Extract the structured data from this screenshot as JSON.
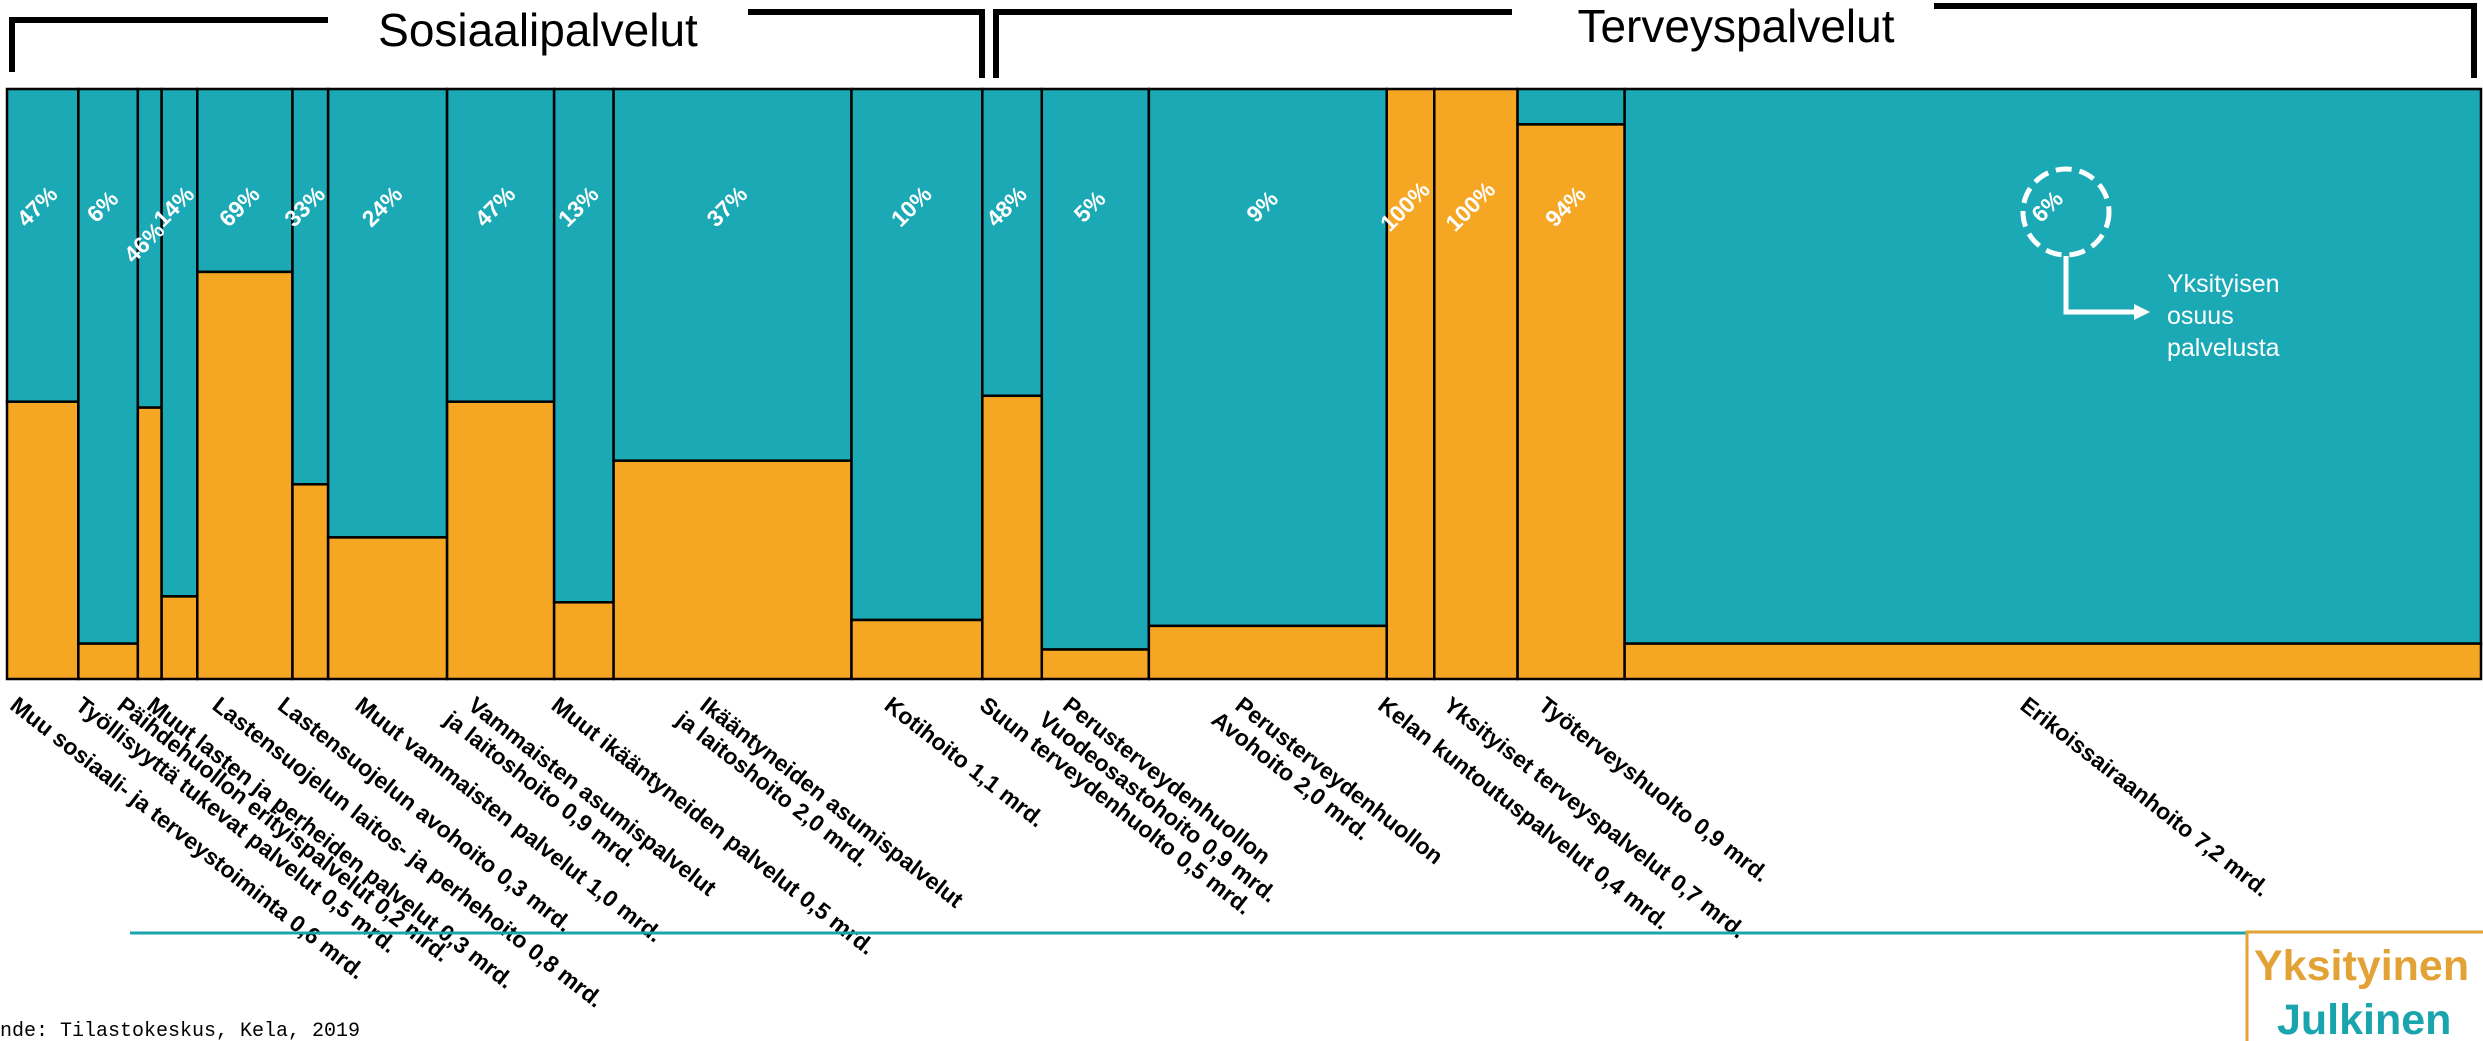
{
  "colors": {
    "private": "#f5a623",
    "public": "#1aa9b5",
    "border": "#000000",
    "label": "#ffffff",
    "legend_private": "#e2a236",
    "legend_public": "#1aa4ae"
  },
  "groups": {
    "social": "Sosiaalipalvelut",
    "health": "Terveyspalvelut"
  },
  "note": {
    "line1": "Yksityisen",
    "line2": "osuus",
    "line3": "palvelusta"
  },
  "source": "nde: Tilastokeskus, Kela, 2019",
  "legend": {
    "private": "Yksityinen",
    "public": "Julkinen"
  },
  "chart_data": {
    "type": "marimekko",
    "total_label_unit": "mrd.",
    "series": [
      {
        "name": "Yksityinen",
        "color": "#f5a623"
      },
      {
        "name": "Julkinen",
        "color": "#1aa9b5"
      }
    ],
    "categories": [
      {
        "group": "social",
        "lines": [
          "Muu sosiaali- ja terveystoiminta 0,6 mrd."
        ],
        "size": 0.6,
        "private_pct": 47,
        "label": "47%"
      },
      {
        "group": "social",
        "lines": [
          "Työllisyyttä tukevat palvelut 0,5 mrd."
        ],
        "size": 0.5,
        "private_pct": 6,
        "label": "6%"
      },
      {
        "group": "social",
        "lines": [
          "Päihdehuollon erityispalvelut 0,2 mrd."
        ],
        "size": 0.2,
        "private_pct": 46,
        "label": "46%"
      },
      {
        "group": "social",
        "lines": [
          "Muut lasten ja perheiden palvelut 0,3 mrd."
        ],
        "size": 0.3,
        "private_pct": 14,
        "label": "14%"
      },
      {
        "group": "social",
        "lines": [
          "Lastensuojelun laitos- ja perhehoito 0,8 mrd."
        ],
        "size": 0.8,
        "private_pct": 69,
        "label": "69%"
      },
      {
        "group": "social",
        "lines": [
          "Lastensuojelun avohoito 0,3 mrd."
        ],
        "size": 0.3,
        "private_pct": 33,
        "label": "33%"
      },
      {
        "group": "social",
        "lines": [
          "Muut vammaisten palvelut 1,0 mrd."
        ],
        "size": 1.0,
        "private_pct": 24,
        "label": "24%"
      },
      {
        "group": "social",
        "lines": [
          "Vammaisten asumispalvelut",
          "ja laitoshoito 0,9 mrd."
        ],
        "size": 0.9,
        "private_pct": 47,
        "label": "47%"
      },
      {
        "group": "social",
        "lines": [
          "Muut ikääntyneiden palvelut 0,5 mrd."
        ],
        "size": 0.5,
        "private_pct": 13,
        "label": "13%"
      },
      {
        "group": "social",
        "lines": [
          "Ikääntyneiden asumispalvelut",
          "ja laitoshoito 2,0 mrd."
        ],
        "size": 2.0,
        "private_pct": 37,
        "label": "37%"
      },
      {
        "group": "social",
        "lines": [
          "Kotihoito 1,1 mrd."
        ],
        "size": 1.1,
        "private_pct": 10,
        "label": "10%"
      },
      {
        "group": "health",
        "lines": [
          "Suun terveydenhuolto 0,5 mrd."
        ],
        "size": 0.5,
        "private_pct": 48,
        "label": "48%"
      },
      {
        "group": "health",
        "lines": [
          "Perusterveydenhuollon",
          "Vuodeosastohoito 0,9 mrd."
        ],
        "size": 0.9,
        "private_pct": 5,
        "label": "5%"
      },
      {
        "group": "health",
        "lines": [
          "Perusterveydenhuollon",
          "Avohoito 2,0 mrd."
        ],
        "size": 2.0,
        "private_pct": 9,
        "label": "9%"
      },
      {
        "group": "health",
        "lines": [
          "Kelan kuntoutuspalvelut 0,4 mrd."
        ],
        "size": 0.4,
        "private_pct": 100,
        "label": "100%"
      },
      {
        "group": "health",
        "lines": [
          "Yksityiset terveyspalvelut 0,7 mrd."
        ],
        "size": 0.7,
        "private_pct": 100,
        "label": "100%"
      },
      {
        "group": "health",
        "lines": [
          "Työterveyshuolto 0,9 mrd."
        ],
        "size": 0.9,
        "private_pct": 94,
        "label": "94%"
      },
      {
        "group": "health",
        "lines": [
          "Erikoissairaanhoito 7,2 mrd."
        ],
        "size": 7.2,
        "private_pct": 6,
        "label": "6%"
      }
    ]
  }
}
